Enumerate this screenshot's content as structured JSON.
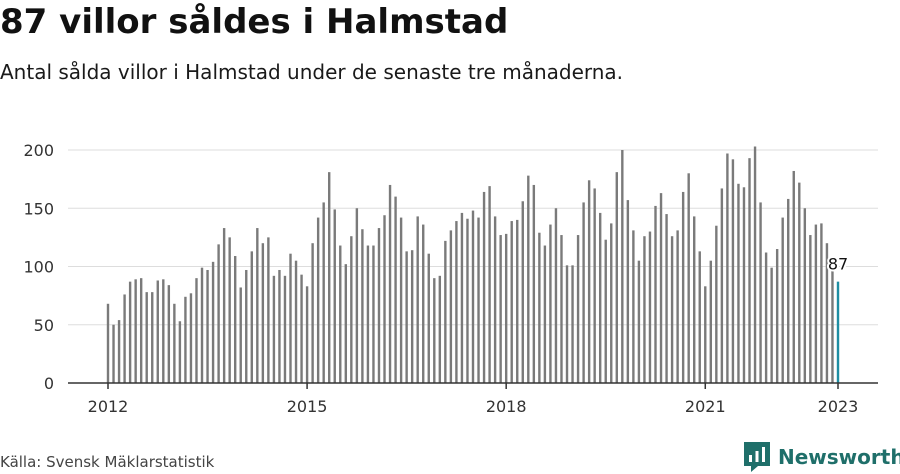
{
  "title": "87 villor såldes i Halmstad",
  "subtitle": "Antal sålda villor i Halmstad under de senaste tre månaderna.",
  "source": "Källa: Svensk Mäklarstatistik",
  "brand": "Newsworthy",
  "colors": {
    "bar": "#7a7a7a",
    "highlight": "#1f8ea3",
    "grid": "#dddddd",
    "axis": "#333333",
    "brand": "#1f6f6a"
  },
  "chart_data": {
    "type": "bar",
    "x_start": "2012-01",
    "x_end": "2023-01",
    "x_ticks": [
      "2012",
      "2015",
      "2018",
      "2021",
      "2023"
    ],
    "ylim": [
      0,
      200
    ],
    "y_ticks": [
      "0",
      "50",
      "100",
      "150",
      "200"
    ],
    "grid": true,
    "highlight_label": "87",
    "values": [
      68,
      50,
      54,
      76,
      87,
      89,
      90,
      78,
      78,
      88,
      89,
      84,
      68,
      53,
      74,
      77,
      90,
      99,
      97,
      104,
      119,
      133,
      125,
      109,
      82,
      97,
      113,
      133,
      120,
      125,
      92,
      97,
      92,
      111,
      105,
      93,
      83,
      120,
      142,
      155,
      181,
      149,
      118,
      102,
      126,
      150,
      132,
      118,
      118,
      133,
      144,
      170,
      160,
      142,
      113,
      114,
      143,
      136,
      111,
      90,
      92,
      122,
      131,
      139,
      146,
      141,
      148,
      142,
      164,
      169,
      143,
      127,
      128,
      139,
      140,
      156,
      178,
      170,
      129,
      118,
      136,
      150,
      127,
      101,
      101,
      127,
      155,
      174,
      167,
      146,
      123,
      137,
      181,
      200,
      157,
      131,
      105,
      126,
      130,
      152,
      163,
      145,
      126,
      131,
      164,
      180,
      143,
      113,
      83,
      105,
      135,
      167,
      197,
      192,
      171,
      168,
      193,
      203,
      155,
      112,
      99,
      115,
      142,
      158,
      182,
      172,
      150,
      127,
      136,
      137,
      120,
      100,
      87
    ]
  }
}
